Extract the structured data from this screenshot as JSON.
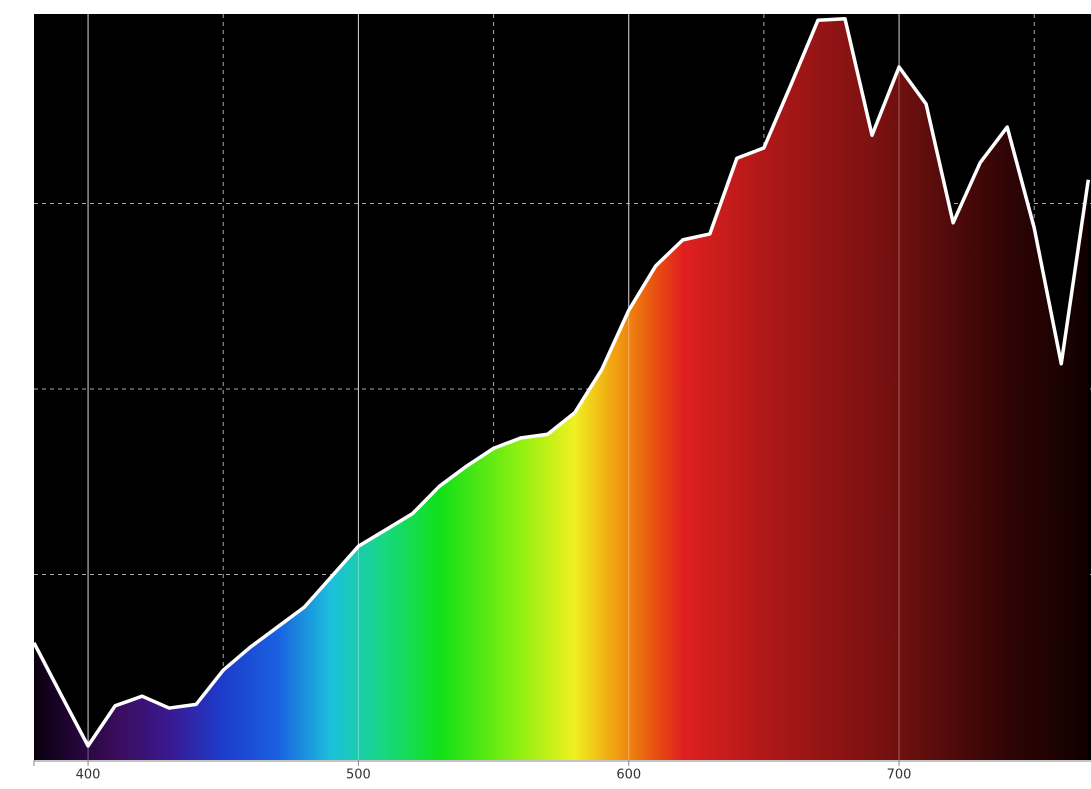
{
  "chart_data": {
    "type": "area",
    "x": [
      380,
      390,
      400,
      410,
      420,
      430,
      440,
      450,
      460,
      470,
      480,
      490,
      500,
      510,
      520,
      530,
      540,
      550,
      560,
      570,
      580,
      590,
      600,
      610,
      620,
      630,
      640,
      650,
      660,
      670,
      680,
      690,
      700,
      710,
      720,
      730,
      740,
      750,
      760,
      770
    ],
    "values": [
      0.158,
      0.088,
      0.019,
      0.073,
      0.086,
      0.07,
      0.075,
      0.121,
      0.152,
      0.179,
      0.206,
      0.247,
      0.288,
      0.31,
      0.332,
      0.369,
      0.396,
      0.42,
      0.434,
      0.439,
      0.468,
      0.526,
      0.606,
      0.666,
      0.701,
      0.709,
      0.811,
      0.825,
      0.91,
      0.997,
      0.999,
      0.842,
      0.934,
      0.884,
      0.724,
      0.805,
      0.853,
      0.717,
      0.534,
      0.782
    ],
    "color": "#ffffff",
    "xlim": [
      380,
      771
    ],
    "ylim": [
      0,
      1
    ],
    "xticks": [
      400,
      500,
      600,
      700
    ],
    "xminor": [
      450,
      550,
      650,
      750
    ],
    "yticks": [
      0.25,
      0.5,
      0.75
    ],
    "grid": true
  }
}
